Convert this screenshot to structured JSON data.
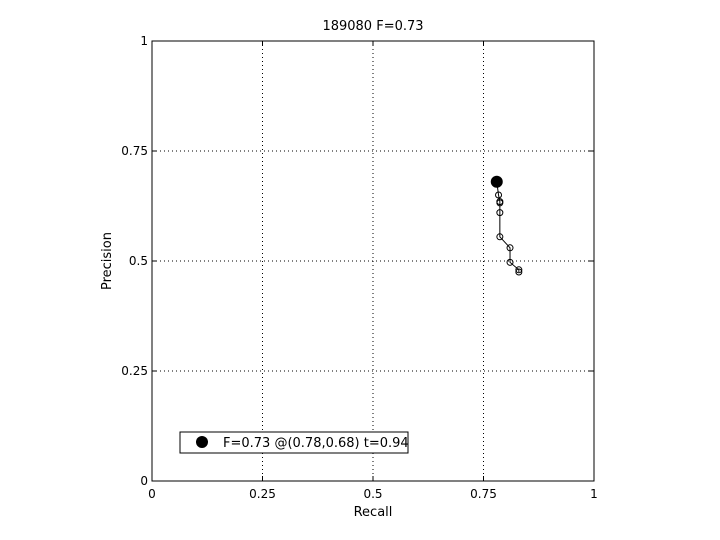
{
  "chart_data": {
    "type": "scatter",
    "title": "189080 F=0.73",
    "xlabel": "Recall",
    "ylabel": "Precision",
    "xlim": [
      0,
      1
    ],
    "ylim": [
      0,
      1
    ],
    "xticks": [
      0,
      0.25,
      0.5,
      0.75,
      1
    ],
    "xtick_labels": [
      "0",
      "0.25",
      "0.5",
      "0.75",
      "1"
    ],
    "yticks": [
      0,
      0.25,
      0.5,
      0.75,
      1
    ],
    "ytick_labels": [
      "0",
      "0.25",
      "0.5",
      "0.75",
      "1"
    ],
    "grid": true,
    "legend_position": "bottom-left",
    "series": [
      {
        "type": "line",
        "marker": "open-circle",
        "x": [
          0.78,
          0.784,
          0.787,
          0.787,
          0.787,
          0.787,
          0.81,
          0.81,
          0.83,
          0.83
        ],
        "y": [
          0.68,
          0.65,
          0.635,
          0.632,
          0.61,
          0.555,
          0.53,
          0.497,
          0.48,
          0.475
        ]
      }
    ],
    "best_point": {
      "name": "F=0.73 @(0.78,0.68) t=0.94",
      "x": 0.78,
      "y": 0.68
    }
  }
}
